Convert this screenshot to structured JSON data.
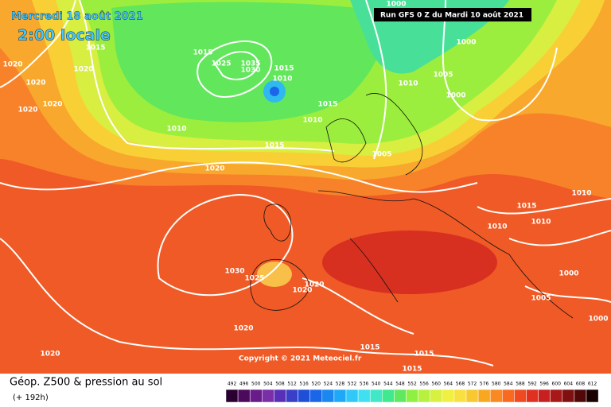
{
  "header": {
    "date": "Mercredi 18 août 2021",
    "time": "2:00 locale",
    "run": "Run GFS 0 Z du Mardi 10 août 2021",
    "copyright": "Copyright © 2021 Meteociel.fr"
  },
  "footer": {
    "title": "Géop. Z500 & pression au sol",
    "lead": "(+ 192h)"
  },
  "isobar_labels": [
    "1020",
    "1020",
    "1020",
    "1020",
    "1015",
    "1020",
    "1015",
    "1025",
    "1035",
    "1030",
    "1015",
    "1010",
    "1015",
    "1010",
    "1010",
    "1015",
    "1020",
    "1000",
    "1000",
    "1005",
    "1010",
    "1000",
    "1005",
    "1010",
    "1015",
    "1010",
    "1010",
    "1030",
    "1025",
    "1020",
    "1020",
    "1000",
    "1005",
    "1000",
    "1020",
    "1015",
    "1015",
    "1015",
    "1020"
  ],
  "scale": {
    "labels": [
      492,
      496,
      500,
      504,
      508,
      512,
      516,
      520,
      524,
      528,
      532,
      536,
      540,
      544,
      548,
      552,
      556,
      560,
      564,
      568,
      572,
      576,
      580,
      584,
      588,
      592,
      596,
      600,
      604,
      608,
      612
    ],
    "colors": [
      "#2a0030",
      "#4b0a5c",
      "#6a1b8a",
      "#7a2fa8",
      "#5a2fb8",
      "#3a3fc8",
      "#1f4fd8",
      "#1a66e8",
      "#1a88f0",
      "#20a8f8",
      "#30c8f8",
      "#40e0f0",
      "#40e8c8",
      "#40e890",
      "#60e860",
      "#90f040",
      "#b8f040",
      "#d8f040",
      "#f0f040",
      "#f8e040",
      "#f8c830",
      "#f8a820",
      "#f88a20",
      "#f86a20",
      "#f04a20",
      "#e03020",
      "#c82020",
      "#a81818",
      "#801010",
      "#500808",
      "#1a0000"
    ]
  }
}
